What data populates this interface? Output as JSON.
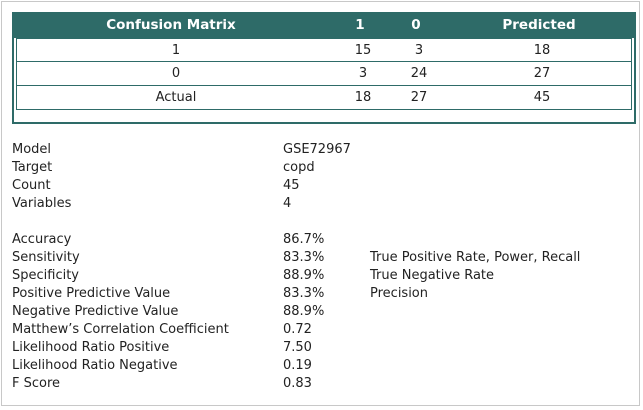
{
  "confusion_matrix": {
    "headers": [
      "Confusion Matrix",
      "1",
      "0",
      "Predicted"
    ],
    "rows": [
      [
        "1",
        "15",
        "3",
        "18"
      ],
      [
        "0",
        "3",
        "24",
        "27"
      ],
      [
        "Actual",
        "18",
        "27",
        "45"
      ]
    ]
  },
  "info": [
    {
      "label": "Model",
      "value": "GSE72967"
    },
    {
      "label": "Target",
      "value": "copd"
    },
    {
      "label": "Count",
      "value": "45"
    },
    {
      "label": "Variables",
      "value": "4"
    }
  ],
  "metrics": [
    {
      "label": "Accuracy",
      "value": "86.7%",
      "note": ""
    },
    {
      "label": "Sensitivity",
      "value": "83.3%",
      "note": "True Positive Rate, Power, Recall"
    },
    {
      "label": "Specificity",
      "value": "88.9%",
      "note": "True Negative Rate"
    },
    {
      "label": "Positive Predictive Value",
      "value": "83.3%",
      "note": "Precision"
    },
    {
      "label": "Negative Predictive Value",
      "value": "88.9%",
      "note": ""
    },
    {
      "label": "Matthew’s Correlation Coefficient",
      "value": "0.72",
      "note": ""
    },
    {
      "label": "Likelihood Ratio Positive",
      "value": "7.50",
      "note": ""
    },
    {
      "label": "Likelihood Ratio Negative",
      "value": "0.19",
      "note": ""
    },
    {
      "label": "F Score",
      "value": "0.83",
      "note": ""
    }
  ]
}
